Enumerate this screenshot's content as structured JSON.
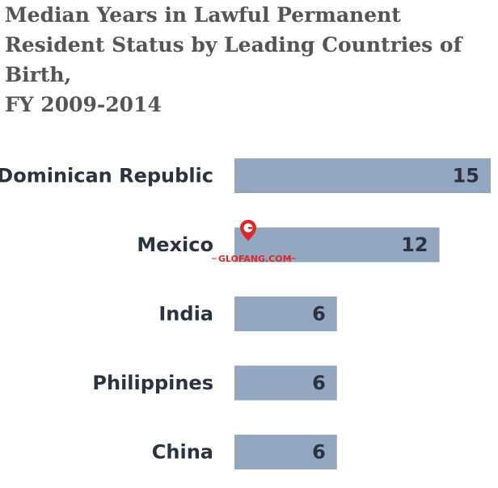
{
  "title": "Median Years in Lawful Permanent\nResident Status by Leading Countries of\nBirth,\nFY 2009-2014",
  "watermark": {
    "text": "GLOFANG.COM",
    "icon": "map-pin-g-logo"
  },
  "colors": {
    "bar": "#93a7c1",
    "text": "#2b3340",
    "title": "#555555",
    "watermark": "#d92a2a"
  },
  "chart_data": {
    "type": "bar",
    "orientation": "horizontal",
    "title": "Median Years in Lawful Permanent Resident Status by Leading Countries of Birth, FY 2009-2014",
    "xlabel": "",
    "ylabel": "",
    "categories": [
      "Dominican Republic",
      "Mexico",
      "India",
      "Philippines",
      "China"
    ],
    "values": [
      15,
      12,
      6,
      6,
      6
    ],
    "data_labels": [
      "15",
      "12",
      "6",
      "6",
      "6"
    ],
    "xlim": [
      0,
      15
    ],
    "grid": false,
    "legend": "none"
  }
}
